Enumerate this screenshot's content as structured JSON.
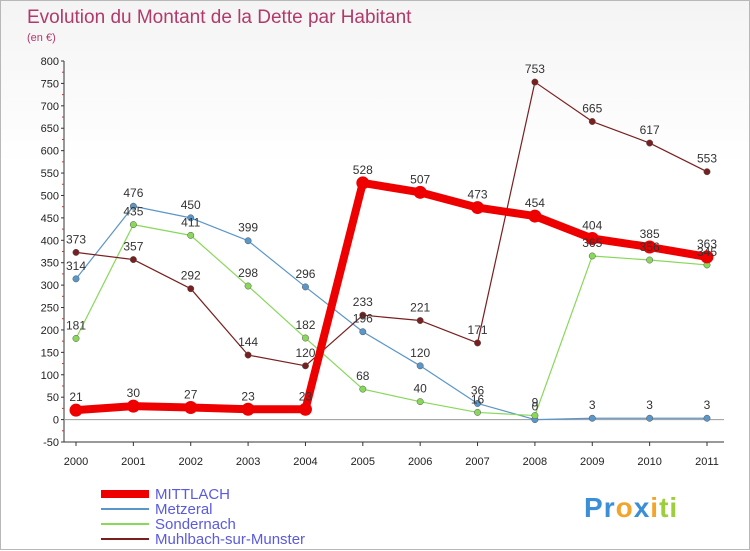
{
  "chart_data": {
    "type": "line",
    "title": "Evolution du Montant de la Dette par Habitant",
    "subtitle": "(en €)",
    "x": [
      "2000",
      "2001",
      "2002",
      "2003",
      "2004",
      "2005",
      "2006",
      "2007",
      "2008",
      "2009",
      "2010",
      "2011"
    ],
    "ylim": [
      -50,
      800
    ],
    "yticks": [
      -50,
      0,
      50,
      100,
      150,
      200,
      250,
      300,
      350,
      400,
      450,
      500,
      550,
      600,
      650,
      700,
      750,
      800
    ],
    "grid": false,
    "legend_position": "bottom-left",
    "series": [
      {
        "name": "MITTLACH",
        "color": "#ee0000",
        "values": [
          21,
          30,
          27,
          23,
          23,
          528,
          507,
          473,
          454,
          404,
          385,
          363
        ],
        "labels": [
          "21",
          "30",
          "27",
          "23",
          "23",
          "528",
          "507",
          "473",
          "454",
          "404",
          "385",
          "363"
        ]
      },
      {
        "name": "Metzeral",
        "color": "#5b96c8",
        "values": [
          314,
          476,
          450,
          399,
          296,
          196,
          120,
          36,
          0,
          3,
          3,
          3
        ],
        "labels": [
          "314",
          "476",
          "450",
          "399",
          "296",
          "196",
          "120",
          "36",
          "0",
          "3",
          "3",
          "3"
        ]
      },
      {
        "name": "Sondernach",
        "color": "#88d85a",
        "values": [
          181,
          435,
          411,
          298,
          182,
          68,
          40,
          16,
          9,
          365,
          356,
          345
        ],
        "labels": [
          "181",
          "435",
          "411",
          "298",
          "182",
          "68",
          "40",
          "16",
          "9",
          "365",
          "356",
          "345"
        ]
      },
      {
        "name": "Muhlbach-sur-Munster",
        "color": "#7a1f1f",
        "values": [
          373,
          357,
          292,
          144,
          120,
          233,
          221,
          171,
          753,
          665,
          617,
          553
        ],
        "labels": [
          "373",
          "357",
          "292",
          "144",
          "120",
          "233",
          "221",
          "171",
          "753",
          "665",
          "617",
          "553"
        ]
      }
    ]
  },
  "logo": {
    "text": "Proxiti",
    "letters": [
      "P",
      "r",
      "o",
      "x",
      "i",
      "t",
      "i"
    ],
    "colors": [
      "#3a8fd6",
      "#3a8fd6",
      "#f2a52a",
      "#3a8fd6",
      "#f2a52a",
      "#9ccf3b",
      "#9ccf3b"
    ]
  }
}
